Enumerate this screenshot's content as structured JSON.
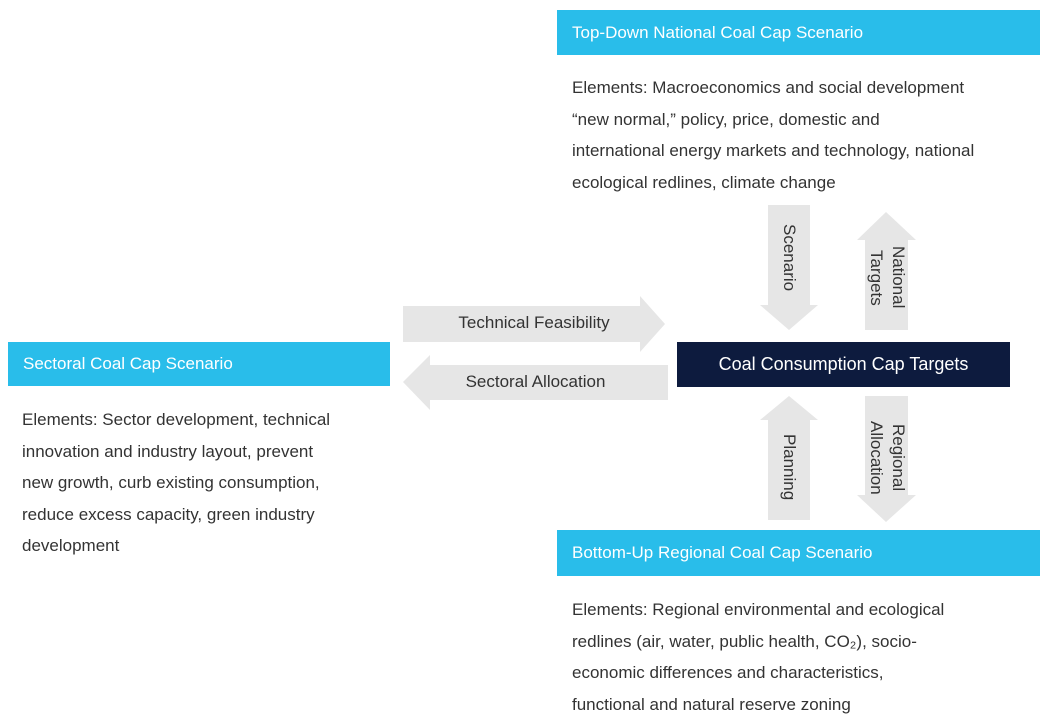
{
  "top": {
    "title": "Top-Down National Coal Cap Scenario",
    "lines": [
      "Elements: Macroeconomics and social development",
      "“new normal,” policy, price, domestic and",
      "international energy markets and technology, national",
      "ecological redlines, climate change"
    ]
  },
  "sectoral": {
    "title": "Sectoral Coal Cap Scenario",
    "lines": [
      "Elements: Sector development, technical",
      "innovation and industry layout, prevent",
      "new growth, curb existing consumption,",
      "reduce excess capacity, green industry",
      "development"
    ]
  },
  "bottom": {
    "title": "Bottom-Up Regional Coal Cap Scenario",
    "lines": [
      "Elements: Regional environmental and ecological",
      "redlines (air, water, public health, CO₂), socio-",
      "economic differences and characteristics,",
      "functional and natural reserve zoning"
    ]
  },
  "center": {
    "title": "Coal Consumption Cap Targets"
  },
  "arrows": {
    "technical": "Technical Feasibility",
    "sectoral": "Sectoral Allocation",
    "scenario": "Scenario",
    "national": "National Targets",
    "planning": "Planning",
    "regional": "Regional Allocation"
  }
}
